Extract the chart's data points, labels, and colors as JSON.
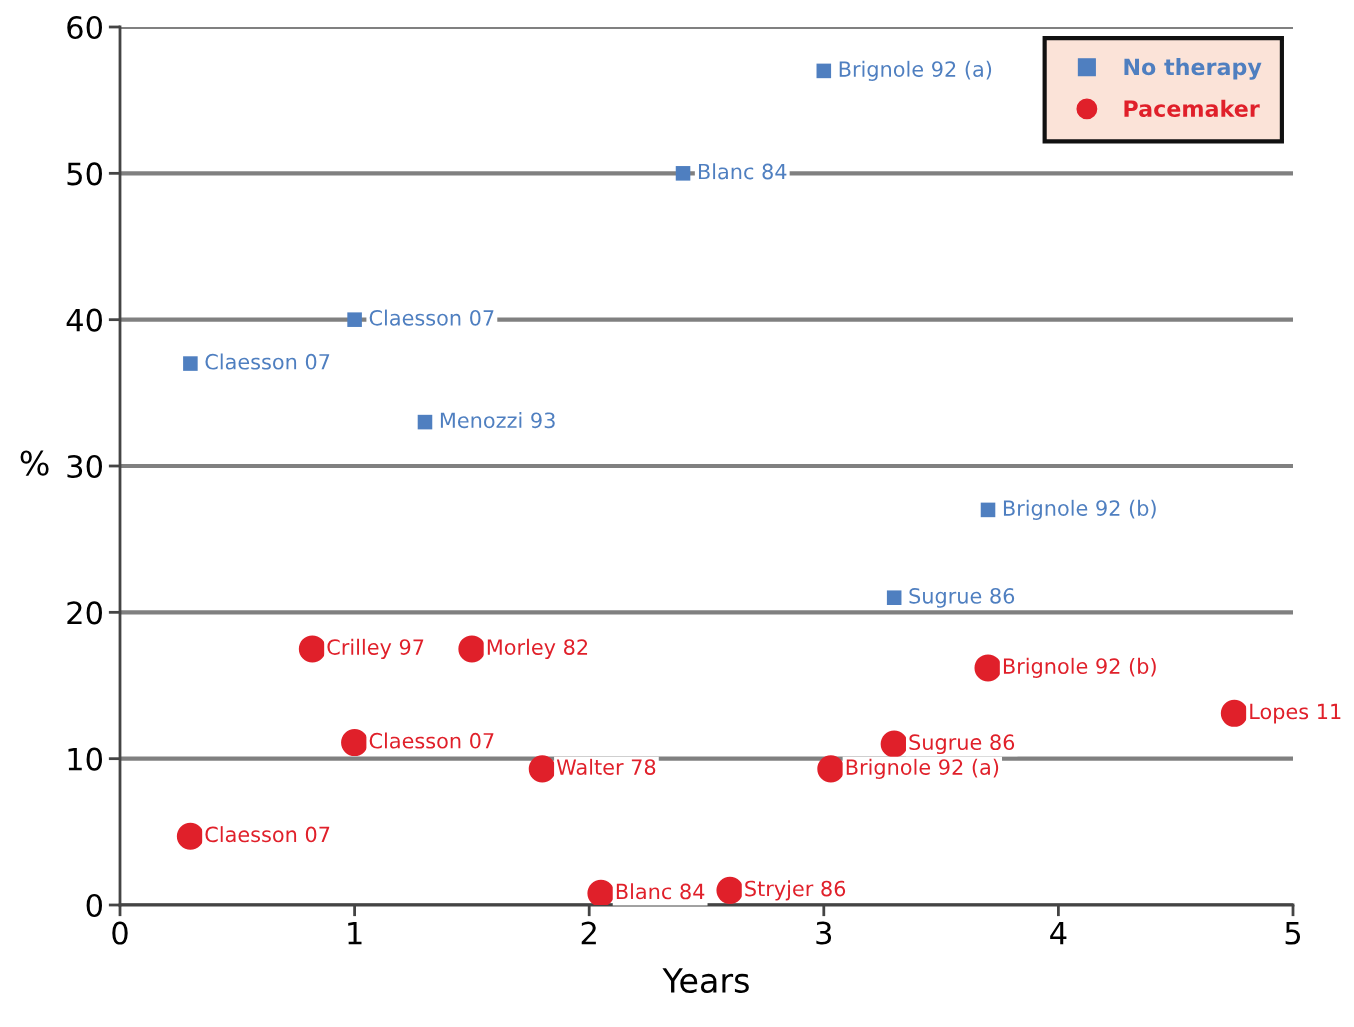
{
  "chart_data": {
    "type": "scatter",
    "xlabel": "Years",
    "ylabel": "%",
    "xlim": [
      0,
      5
    ],
    "xticks": [
      0,
      1,
      2,
      3,
      4,
      5
    ],
    "ylim": [
      0,
      60
    ],
    "yticks": [
      0,
      10,
      20,
      30,
      40,
      50,
      60
    ],
    "grid": "y",
    "legend": "top right",
    "series": [
      {
        "name": "No therapy",
        "color": "#4f7fc0",
        "marker": "square",
        "x": [
          3.0,
          2.4,
          1.0,
          0.3,
          1.3,
          3.7,
          3.3
        ],
        "values": [
          57,
          50,
          40,
          37,
          33,
          27,
          21
        ]
      },
      {
        "name": "Pacemaker",
        "color": "#e0202a",
        "marker": "circle",
        "x": [
          0.82,
          1.5,
          3.7,
          4.75,
          1.0,
          3.3,
          1.8,
          3.03,
          0.3,
          2.05,
          2.6
        ],
        "values": [
          17.5,
          17.5,
          16.2,
          13.1,
          11.1,
          11.0,
          9.3,
          9.3,
          4.7,
          0.8,
          1.0
        ]
      }
    ],
    "annotations": [
      {
        "text": "Brignole 92 (a)",
        "x": 3.0,
        "y": 57
      },
      {
        "text": "Blanc 84",
        "x": 2.4,
        "y": 50
      },
      {
        "text": "Claesson 07",
        "x": 1.0,
        "y": 40
      },
      {
        "text": "Claesson 07",
        "x": 0.3,
        "y": 37
      },
      {
        "text": "Menozzi 93",
        "x": 1.3,
        "y": 33
      },
      {
        "text": "Brignole 92 (b)",
        "x": 3.7,
        "y": 27
      },
      {
        "text": "Sugrue 86",
        "x": 3.3,
        "y": 21
      },
      {
        "text": "Crilley 97",
        "x": 0.82,
        "y": 17.5
      },
      {
        "text": "Morley 82",
        "x": 1.5,
        "y": 17.5
      },
      {
        "text": "Brignole 92 (b)",
        "x": 3.7,
        "y": 16.2
      },
      {
        "text": "Lopes 11",
        "x": 4.75,
        "y": 13.1
      },
      {
        "text": "Claesson 07",
        "x": 1.0,
        "y": 11.1
      },
      {
        "text": "Sugrue 86",
        "x": 3.3,
        "y": 11.0
      },
      {
        "text": "Walter 78",
        "x": 1.8,
        "y": 9.3
      },
      {
        "text": "Brignole 92 (a)",
        "x": 3.03,
        "y": 9.3
      },
      {
        "text": "Claesson 07",
        "x": 0.3,
        "y": 4.7
      },
      {
        "text": "Blanc 84",
        "x": 2.05,
        "y": 0.8
      },
      {
        "text": "Stryjer 86",
        "x": 2.6,
        "y": 1.0
      }
    ]
  }
}
